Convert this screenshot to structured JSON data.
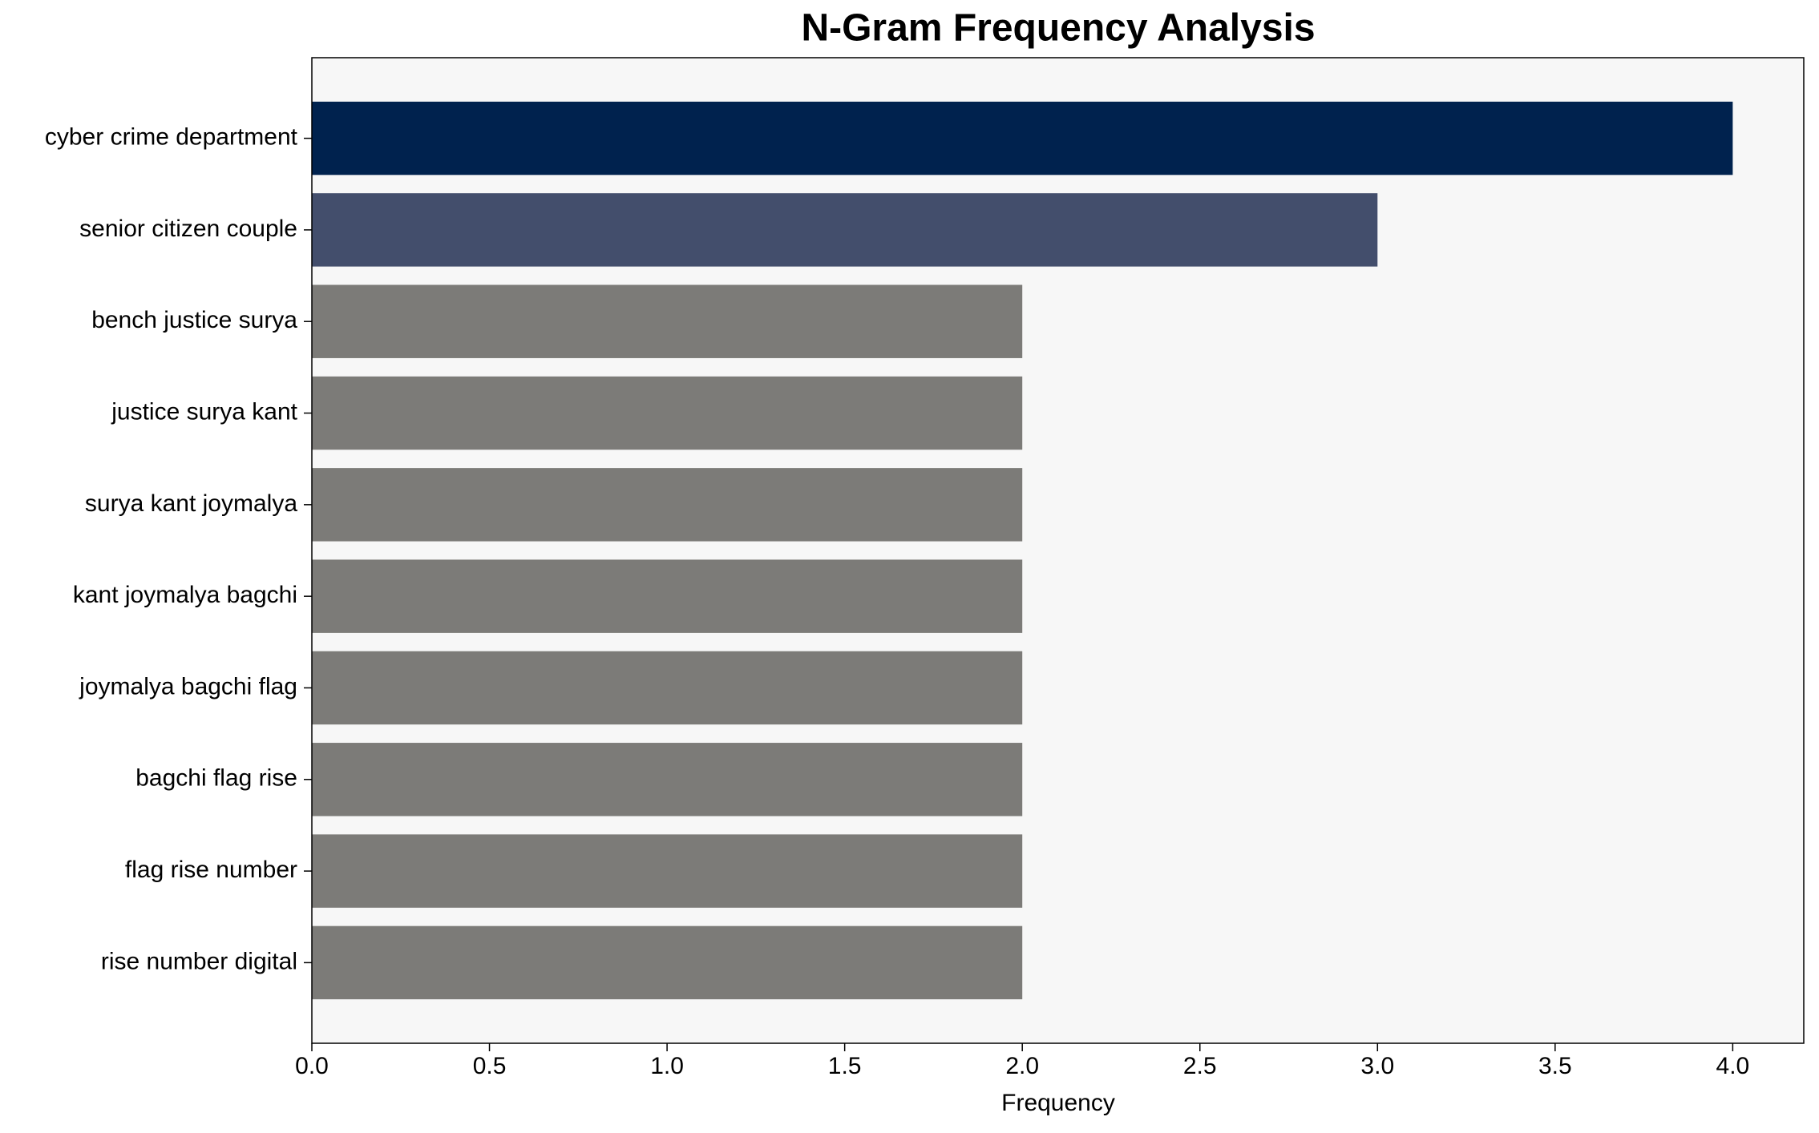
{
  "chart_data": {
    "type": "barh",
    "title": "N-Gram Frequency Analysis",
    "xlabel": "Frequency",
    "categories": [
      "cyber crime department",
      "senior citizen couple",
      "bench justice surya",
      "justice surya kant",
      "surya kant joymalya",
      "kant joymalya bagchi",
      "joymalya bagchi flag",
      "bagchi flag rise",
      "flag rise number",
      "rise number digital"
    ],
    "values": [
      4,
      3,
      2,
      2,
      2,
      2,
      2,
      2,
      2,
      2
    ],
    "colors": [
      "#00224e",
      "#434e6c",
      "#7c7b78",
      "#7c7b78",
      "#7c7b78",
      "#7c7b78",
      "#7c7b78",
      "#7c7b78",
      "#7c7b78",
      "#7c7b78"
    ],
    "xlim": [
      0,
      4.2
    ],
    "xticks": [
      {
        "value": 0,
        "label": "0.0"
      },
      {
        "value": 0.5,
        "label": "0.5"
      },
      {
        "value": 1,
        "label": "1.0"
      },
      {
        "value": 1.5,
        "label": "1.5"
      },
      {
        "value": 2,
        "label": "2.0"
      },
      {
        "value": 2.5,
        "label": "2.5"
      },
      {
        "value": 3,
        "label": "3.0"
      },
      {
        "value": 3.5,
        "label": "3.5"
      },
      {
        "value": 4,
        "label": "4.0"
      }
    ],
    "background": "#f7f7f7"
  }
}
